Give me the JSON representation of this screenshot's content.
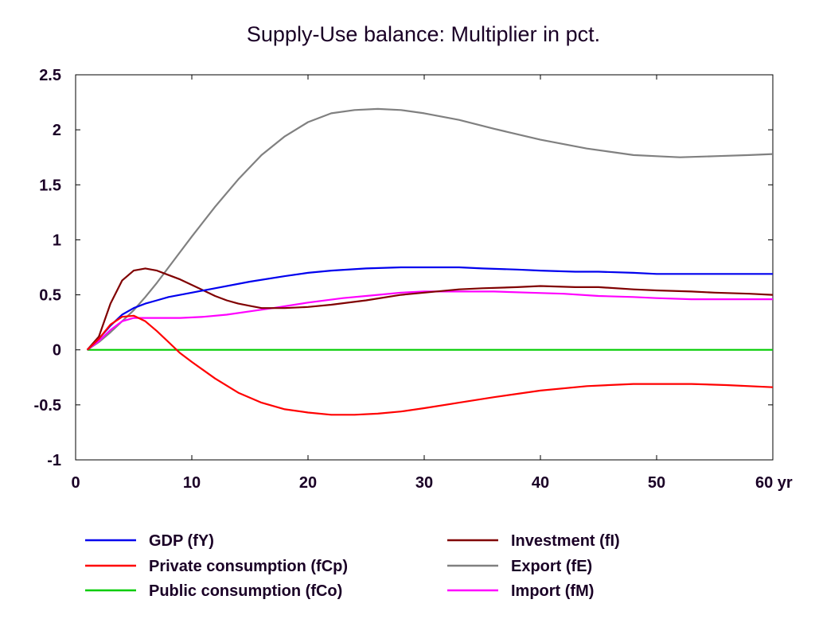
{
  "chart_data": {
    "type": "line",
    "title": "Supply-Use balance: Multiplier in pct.",
    "xlabel": "",
    "ylabel": "",
    "xlim": [
      0,
      60
    ],
    "ylim": [
      -1,
      2.5
    ],
    "x_ticks": [
      0,
      10,
      20,
      30,
      40,
      50,
      60
    ],
    "x_tick_labels": [
      "0",
      "10",
      "20",
      "30",
      "40",
      "50",
      "60 yr"
    ],
    "y_ticks": [
      2.5,
      2,
      1.5,
      1,
      0.5,
      0,
      -0.5,
      -1
    ],
    "y_tick_labels": [
      "2.5",
      "2",
      "1.5",
      "1",
      "0.5",
      "0",
      "-0.5",
      "-1"
    ],
    "grid": false,
    "legend_position": "bottom",
    "series": [
      {
        "name": "GDP (fY)",
        "color": "#0000ee",
        "points": [
          [
            1,
            0
          ],
          [
            2,
            0.1
          ],
          [
            3,
            0.22
          ],
          [
            4,
            0.32
          ],
          [
            5,
            0.38
          ],
          [
            6,
            0.42
          ],
          [
            7,
            0.45
          ],
          [
            8,
            0.48
          ],
          [
            9,
            0.5
          ],
          [
            10,
            0.52
          ],
          [
            12,
            0.56
          ],
          [
            15,
            0.62
          ],
          [
            18,
            0.67
          ],
          [
            20,
            0.7
          ],
          [
            22,
            0.72
          ],
          [
            25,
            0.74
          ],
          [
            28,
            0.75
          ],
          [
            30,
            0.75
          ],
          [
            33,
            0.75
          ],
          [
            35,
            0.74
          ],
          [
            38,
            0.73
          ],
          [
            40,
            0.72
          ],
          [
            43,
            0.71
          ],
          [
            45,
            0.71
          ],
          [
            48,
            0.7
          ],
          [
            50,
            0.69
          ],
          [
            53,
            0.69
          ],
          [
            55,
            0.69
          ],
          [
            58,
            0.69
          ],
          [
            60,
            0.69
          ]
        ]
      },
      {
        "name": "Private consumption (fCp)",
        "color": "#ff0000",
        "points": [
          [
            1,
            0
          ],
          [
            2,
            0.1
          ],
          [
            3,
            0.23
          ],
          [
            4,
            0.3
          ],
          [
            5,
            0.31
          ],
          [
            6,
            0.26
          ],
          [
            7,
            0.17
          ],
          [
            8,
            0.07
          ],
          [
            9,
            -0.03
          ],
          [
            10,
            -0.11
          ],
          [
            12,
            -0.26
          ],
          [
            14,
            -0.39
          ],
          [
            16,
            -0.48
          ],
          [
            18,
            -0.54
          ],
          [
            20,
            -0.57
          ],
          [
            22,
            -0.59
          ],
          [
            24,
            -0.59
          ],
          [
            26,
            -0.58
          ],
          [
            28,
            -0.56
          ],
          [
            30,
            -0.53
          ],
          [
            33,
            -0.48
          ],
          [
            36,
            -0.43
          ],
          [
            40,
            -0.37
          ],
          [
            44,
            -0.33
          ],
          [
            48,
            -0.31
          ],
          [
            50,
            -0.31
          ],
          [
            53,
            -0.31
          ],
          [
            56,
            -0.32
          ],
          [
            60,
            -0.34
          ]
        ]
      },
      {
        "name": "Public consumption (fCo)",
        "color": "#00cc00",
        "points": [
          [
            1,
            0
          ],
          [
            10,
            0
          ],
          [
            20,
            0
          ],
          [
            30,
            0
          ],
          [
            40,
            0
          ],
          [
            50,
            0
          ],
          [
            60,
            0
          ]
        ]
      },
      {
        "name": "Investment (fI)",
        "color": "#800000",
        "points": [
          [
            1,
            0
          ],
          [
            2,
            0.12
          ],
          [
            3,
            0.42
          ],
          [
            4,
            0.63
          ],
          [
            5,
            0.72
          ],
          [
            6,
            0.74
          ],
          [
            7,
            0.72
          ],
          [
            8,
            0.68
          ],
          [
            9,
            0.64
          ],
          [
            10,
            0.59
          ],
          [
            11,
            0.54
          ],
          [
            12,
            0.49
          ],
          [
            13,
            0.45
          ],
          [
            14,
            0.42
          ],
          [
            15,
            0.4
          ],
          [
            16,
            0.38
          ],
          [
            17,
            0.38
          ],
          [
            18,
            0.38
          ],
          [
            20,
            0.39
          ],
          [
            22,
            0.41
          ],
          [
            25,
            0.45
          ],
          [
            28,
            0.5
          ],
          [
            30,
            0.52
          ],
          [
            33,
            0.55
          ],
          [
            35,
            0.56
          ],
          [
            38,
            0.57
          ],
          [
            40,
            0.58
          ],
          [
            43,
            0.57
          ],
          [
            45,
            0.57
          ],
          [
            48,
            0.55
          ],
          [
            50,
            0.54
          ],
          [
            53,
            0.53
          ],
          [
            55,
            0.52
          ],
          [
            58,
            0.51
          ],
          [
            60,
            0.5
          ]
        ]
      },
      {
        "name": "Export (fE)",
        "color": "#808080",
        "points": [
          [
            1,
            0
          ],
          [
            2,
            0.07
          ],
          [
            3,
            0.16
          ],
          [
            4,
            0.26
          ],
          [
            5,
            0.36
          ],
          [
            6,
            0.48
          ],
          [
            7,
            0.61
          ],
          [
            8,
            0.75
          ],
          [
            9,
            0.89
          ],
          [
            10,
            1.03
          ],
          [
            12,
            1.3
          ],
          [
            14,
            1.55
          ],
          [
            16,
            1.77
          ],
          [
            18,
            1.94
          ],
          [
            20,
            2.07
          ],
          [
            22,
            2.15
          ],
          [
            24,
            2.18
          ],
          [
            26,
            2.19
          ],
          [
            28,
            2.18
          ],
          [
            30,
            2.15
          ],
          [
            33,
            2.09
          ],
          [
            36,
            2.01
          ],
          [
            40,
            1.91
          ],
          [
            44,
            1.83
          ],
          [
            48,
            1.77
          ],
          [
            50,
            1.76
          ],
          [
            52,
            1.75
          ],
          [
            55,
            1.76
          ],
          [
            58,
            1.77
          ],
          [
            60,
            1.78
          ]
        ]
      },
      {
        "name": "Import (fM)",
        "color": "#ff00ff",
        "points": [
          [
            1,
            0
          ],
          [
            2,
            0.08
          ],
          [
            3,
            0.18
          ],
          [
            4,
            0.26
          ],
          [
            5,
            0.29
          ],
          [
            7,
            0.29
          ],
          [
            9,
            0.29
          ],
          [
            11,
            0.3
          ],
          [
            13,
            0.32
          ],
          [
            15,
            0.35
          ],
          [
            17,
            0.38
          ],
          [
            20,
            0.43
          ],
          [
            23,
            0.47
          ],
          [
            26,
            0.5
          ],
          [
            28,
            0.52
          ],
          [
            30,
            0.53
          ],
          [
            33,
            0.53
          ],
          [
            36,
            0.53
          ],
          [
            39,
            0.52
          ],
          [
            42,
            0.51
          ],
          [
            45,
            0.49
          ],
          [
            48,
            0.48
          ],
          [
            50,
            0.47
          ],
          [
            53,
            0.46
          ],
          [
            56,
            0.46
          ],
          [
            60,
            0.46
          ]
        ]
      }
    ]
  }
}
